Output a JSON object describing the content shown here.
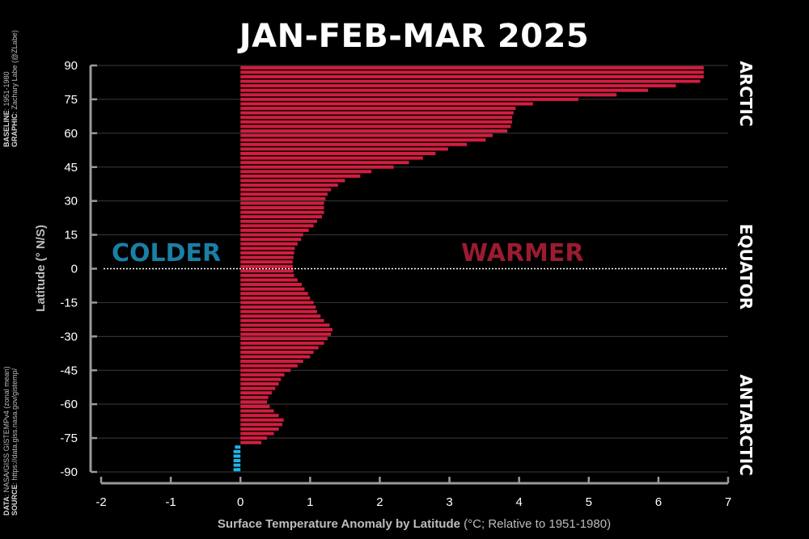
{
  "title": "JAN-FEB-MAR 2025",
  "credits": {
    "baseline_label": "BASELINE",
    "baseline_value": ": 1951-1980",
    "graphic_label": "GRAPHIC",
    "graphic_value": ": Zachary Labe (@ZLabe)",
    "data_label": "DATA",
    "data_value": ": NASA/GISS GISTEMPv4 (zonal mean)",
    "source_label": "SOURCE",
    "source_value": ": https://data.giss.nasa.gov/gistemp/"
  },
  "regions": {
    "arctic": "ARCTIC",
    "equator": "EQUATOR",
    "antarctic": "ANTARCTIC"
  },
  "annotations": {
    "colder": "COLDER",
    "warmer": "WARMER",
    "colder_color": "#1a7fa6",
    "warmer_color": "#9b1b30"
  },
  "colors": {
    "warm_bar": "#d21d3f",
    "cold_bar": "#22b2e8",
    "background": "#000000"
  },
  "chart_data": {
    "type": "bar",
    "orientation": "horizontal",
    "xlabel": "Surface Temperature Anomaly by Latitude",
    "xlabel_units": " (°C; Relative to 1951-1980)",
    "ylabel": "Latitude (° N/S)",
    "xlim": [
      -2,
      7
    ],
    "ylim": [
      -90,
      90
    ],
    "xticks": [
      "-2",
      "-1",
      "0",
      "1",
      "2",
      "3",
      "4",
      "5",
      "6",
      "7"
    ],
    "yticks": [
      "90",
      "75",
      "60",
      "45",
      "30",
      "15",
      "0",
      "-15",
      "-30",
      "-45",
      "-60",
      "-75",
      "-90"
    ],
    "grid": true,
    "zero_line": "dotted",
    "latitudes": [
      89,
      87,
      85,
      83,
      81,
      79,
      77,
      75,
      73,
      71,
      69,
      67,
      65,
      63,
      61,
      59,
      57,
      55,
      53,
      51,
      49,
      47,
      45,
      43,
      41,
      39,
      37,
      35,
      33,
      31,
      29,
      27,
      25,
      23,
      21,
      19,
      17,
      15,
      13,
      11,
      9,
      7,
      5,
      3,
      1,
      -1,
      -3,
      -5,
      -7,
      -9,
      -11,
      -13,
      -15,
      -17,
      -19,
      -21,
      -23,
      -25,
      -27,
      -29,
      -31,
      -33,
      -35,
      -37,
      -39,
      -41,
      -43,
      -45,
      -47,
      -49,
      -51,
      -53,
      -55,
      -57,
      -59,
      -61,
      -63,
      -65,
      -67,
      -69,
      -71,
      -73,
      -75,
      -77,
      -79,
      -81,
      -83,
      -85,
      -87,
      -89
    ],
    "values": [
      6.65,
      6.65,
      6.65,
      6.6,
      6.25,
      5.85,
      5.4,
      4.85,
      4.2,
      3.95,
      3.92,
      3.9,
      3.9,
      3.88,
      3.83,
      3.62,
      3.52,
      3.25,
      2.98,
      2.8,
      2.62,
      2.42,
      2.2,
      1.88,
      1.72,
      1.5,
      1.4,
      1.3,
      1.25,
      1.22,
      1.2,
      1.2,
      1.2,
      1.17,
      1.1,
      1.05,
      0.98,
      0.9,
      0.87,
      0.82,
      0.78,
      0.77,
      0.76,
      0.75,
      0.75,
      0.76,
      0.77,
      0.82,
      0.88,
      0.92,
      0.97,
      1.0,
      1.05,
      1.08,
      1.1,
      1.15,
      1.2,
      1.28,
      1.32,
      1.3,
      1.25,
      1.2,
      1.12,
      1.05,
      1.0,
      0.9,
      0.82,
      0.72,
      0.63,
      0.58,
      0.55,
      0.5,
      0.45,
      0.4,
      0.38,
      0.42,
      0.48,
      0.55,
      0.62,
      0.6,
      0.55,
      0.48,
      0.38,
      0.3,
      -0.08,
      -0.1,
      -0.1,
      -0.1,
      -0.1,
      -0.1
    ]
  }
}
